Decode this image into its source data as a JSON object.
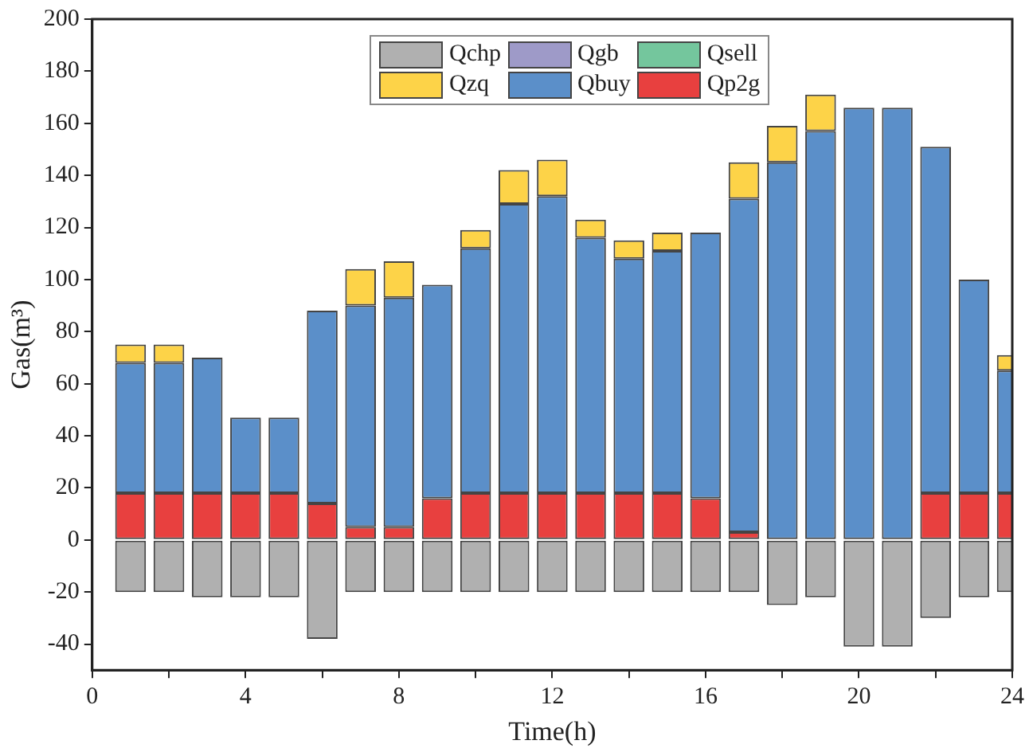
{
  "chart_data": {
    "type": "bar",
    "stacked": true,
    "xlabel": "Time(h)",
    "ylabel": "Gas(m³)",
    "x": [
      1,
      2,
      3,
      4,
      5,
      6,
      7,
      8,
      9,
      10,
      11,
      12,
      13,
      14,
      15,
      16,
      17,
      18,
      19,
      20,
      21,
      22,
      23,
      24
    ],
    "xlim": [
      0,
      24
    ],
    "xticks": [
      0,
      {
        "value": 2,
        "label": null
      },
      4,
      {
        "value": 6,
        "label": null
      },
      8,
      {
        "value": 10,
        "label": null
      },
      12,
      {
        "value": 14,
        "label": null
      },
      16,
      {
        "value": 18,
        "label": null
      },
      20,
      {
        "value": 22,
        "label": null
      },
      24
    ],
    "ylim": [
      -50,
      200
    ],
    "yticks": [
      -40,
      -20,
      0,
      20,
      40,
      60,
      80,
      100,
      120,
      140,
      160,
      180,
      200
    ],
    "grid": false,
    "legend": "top",
    "series": [
      {
        "name": "Qchp",
        "color": "#b0b0b0",
        "values": [
          -20,
          -20,
          -22,
          -22,
          -22,
          -38,
          -20,
          -20,
          -20,
          -20,
          -20,
          -20,
          -20,
          -20,
          -20,
          -20,
          -20,
          -25,
          -22,
          -41,
          -41,
          -30,
          -22,
          -20
        ]
      },
      {
        "name": "Qp2g",
        "color": "#e8403f",
        "values": [
          18,
          18,
          18,
          18,
          18,
          14,
          5,
          5,
          16,
          18,
          18,
          18,
          18,
          18,
          18,
          16,
          3,
          0,
          0,
          0,
          0,
          18,
          18,
          18
        ]
      },
      {
        "name": "Qbuy",
        "color": "#5b8fc9",
        "values": [
          50,
          50,
          52,
          29,
          29,
          74,
          85,
          88,
          82,
          94,
          111,
          114,
          98,
          90,
          93,
          102,
          128,
          145,
          157,
          166,
          166,
          133,
          82,
          47
        ]
      },
      {
        "name": "Qzq",
        "color": "#fdd348",
        "values": [
          7,
          7,
          0,
          0,
          0,
          0,
          14,
          14,
          0,
          7,
          13,
          14,
          7,
          7,
          7,
          0,
          14,
          14,
          14,
          0,
          0,
          0,
          0,
          6
        ]
      },
      {
        "name": "Qgb",
        "color": "#9e9ac8",
        "values": [
          0,
          0,
          0,
          0,
          0,
          0,
          0,
          0,
          0,
          0,
          0,
          0,
          0,
          0,
          0,
          0,
          0,
          0,
          0,
          0,
          0,
          0,
          0,
          0
        ]
      },
      {
        "name": "Qsell",
        "color": "#74c69d",
        "values": [
          0,
          0,
          0,
          0,
          0,
          0,
          0,
          0,
          0,
          0,
          0,
          0,
          0,
          0,
          0,
          0,
          0,
          0,
          0,
          0,
          0,
          0,
          0,
          0
        ]
      }
    ]
  }
}
